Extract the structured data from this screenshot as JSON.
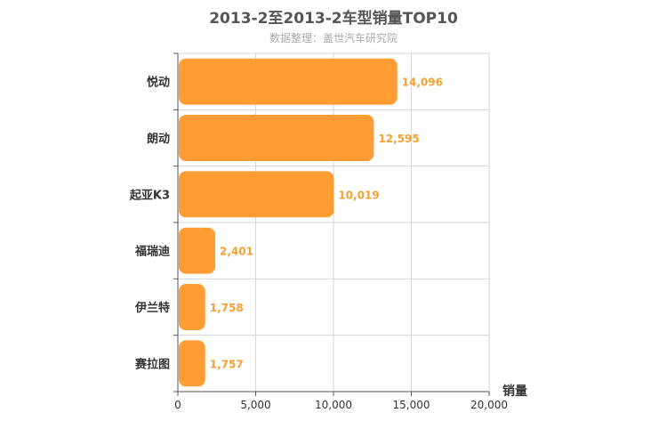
{
  "chart_data": {
    "type": "bar",
    "orientation": "horizontal",
    "title": "2013-2至2013-2车型销量TOP10",
    "subtitle": "数据整理：盖世汽车研究院",
    "categories": [
      "悦动",
      "朗动",
      "起亚K3",
      "福瑞迪",
      "伊兰特",
      "赛拉图"
    ],
    "values": [
      14096,
      12595,
      10019,
      2401,
      1758,
      1757
    ],
    "value_labels": [
      "14,096",
      "12,595",
      "10,019",
      "2,401",
      "1,758",
      "1,757"
    ],
    "xlabel": "销量",
    "ylabel": "",
    "xlim": [
      0,
      20000
    ],
    "ticks": [
      0,
      5000,
      10000,
      15000,
      20000
    ],
    "tick_labels": [
      "0",
      "5,000",
      "10,000",
      "15,000",
      "20,000"
    ],
    "grid": true,
    "colors": {
      "bar": "#FF9C33",
      "label": "#F5A033",
      "grid": "#d6d6d6",
      "axis": "#555555"
    }
  }
}
